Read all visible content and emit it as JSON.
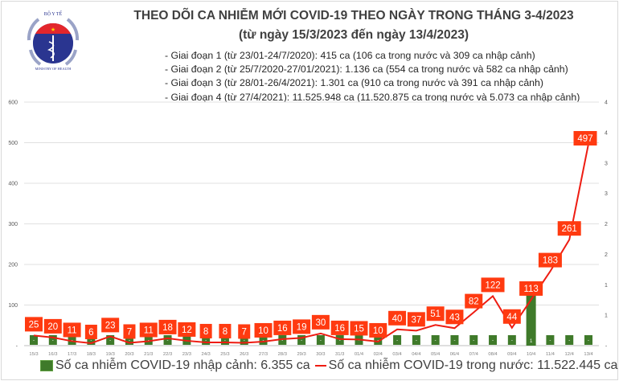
{
  "header": {
    "logo_text_top": "BỘ Y TẾ",
    "logo_text_bottom": "MINISTRY OF HEALTH",
    "title": "THEO DÕI CA NHIỄM MỚI COVID-19 THEO NGÀY TRONG THÁNG 3-4/2023",
    "subtitle": "(từ ngày 15/3/2023 đến ngày 13/4/2023)",
    "notes": [
      "- Giai đoạn 1 (từ 23/01-24/7/2020): 415 ca (106 ca trong nước và 309 ca nhập cảnh)",
      "- Giai đoạn 2 (từ 25/7/2020-27/01/2021): 1.136 ca (554 ca trong nước và 582 ca nhập cảnh)",
      "- Giai đoạn 3 (từ 28/01-26/4/2021): 1.301 ca (910 ca trong nước và 391 ca nhập cảnh)",
      "- Giai đoạn 4 (từ 27/4/2021): 11.525.948 ca (11.520.875 ca trong nước và 5.073 ca nhập cảnh)"
    ]
  },
  "chart_data": {
    "type": "bar+line",
    "categories": [
      "15/3",
      "16/3",
      "17/3",
      "18/3",
      "19/3",
      "20/3",
      "21/3",
      "22/3",
      "23/3",
      "24/3",
      "25/3",
      "26/3",
      "27/3",
      "28/3",
      "29/3",
      "30/3",
      "31/3",
      "01/4",
      "02/4",
      "03/4",
      "04/4",
      "05/4",
      "06/4",
      "07/4",
      "08/4",
      "09/4",
      "10/4",
      "11/4",
      "12/4",
      "13/4"
    ],
    "series": [
      {
        "name": "Số ca nhiễm COVID-19 nhập cảnh: 6.355 ca",
        "type": "bar",
        "axis": "right",
        "color": "#3f7a2a",
        "values": [
          0,
          0,
          0,
          0,
          0,
          0,
          0,
          0,
          0,
          0,
          0,
          0,
          0,
          0,
          0,
          0,
          0,
          0,
          0,
          0,
          0,
          0,
          0,
          0,
          0,
          0,
          1,
          0,
          0,
          0
        ]
      },
      {
        "name": "Số ca nhiễm COVID-19 trong nước: 11.522.445 ca",
        "type": "line",
        "axis": "left",
        "color": "#ee1c12",
        "label_color": "#ff3a10",
        "values": [
          25,
          20,
          11,
          6,
          23,
          7,
          11,
          18,
          12,
          8,
          8,
          7,
          10,
          16,
          19,
          30,
          16,
          15,
          10,
          40,
          37,
          51,
          43,
          82,
          122,
          44,
          113,
          183,
          261,
          497
        ]
      }
    ],
    "left_axis": {
      "ylim": [
        0,
        600
      ],
      "ticks": [
        "-",
        "100",
        "200",
        "300",
        "400",
        "500",
        "600"
      ]
    },
    "right_axis": {
      "ylim": [
        0,
        4
      ],
      "ticks": [
        "-",
        "1",
        "1",
        "2",
        "2",
        "3",
        "3",
        "4",
        "4"
      ]
    },
    "zero_label": "-",
    "grid": true,
    "legend": "bottom"
  }
}
